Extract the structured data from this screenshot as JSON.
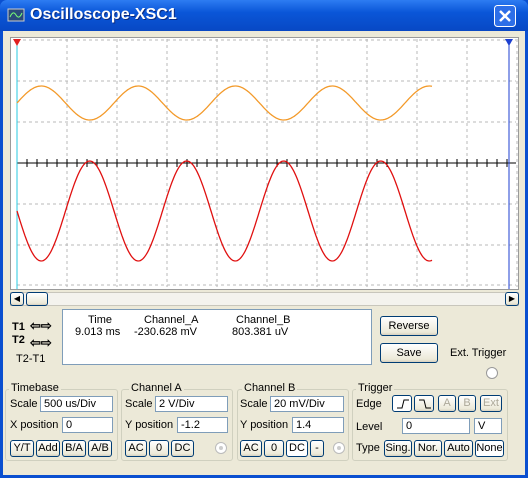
{
  "window": {
    "title": "Oscilloscope-XSC1"
  },
  "cursors": {
    "t1": "T1",
    "t2": "T2",
    "t2_t1": "T2-T1"
  },
  "readout": {
    "headers": [
      "Time",
      "Channel_A",
      "Channel_B"
    ],
    "values": [
      "9.013 ms",
      "-230.628 mV",
      "803.381 uV"
    ]
  },
  "buttons": {
    "reverse": "Reverse",
    "save": "Save"
  },
  "ext_trigger": "Ext. Trigger",
  "timebase": {
    "title": "Timebase",
    "scale_label": "Scale",
    "scale": "500 us/Div",
    "position_label": "X position",
    "position": "0",
    "modes": [
      "Y/T",
      "Add",
      "B/A",
      "A/B"
    ]
  },
  "channel_a": {
    "title": "Channel A",
    "scale_label": "Scale",
    "scale": "2  V/Div",
    "position_label": "Y position",
    "position": "-1.2",
    "coupling": [
      "AC",
      "0",
      "DC"
    ]
  },
  "channel_b": {
    "title": "Channel B",
    "scale_label": "Scale",
    "scale": "20 mV/Div",
    "position_label": "Y position",
    "position": "1.4",
    "coupling": [
      "AC",
      "0",
      "DC",
      "-"
    ]
  },
  "trigger": {
    "title": "Trigger",
    "edge_label": "Edge",
    "sources": [
      "A",
      "B",
      "Ext"
    ],
    "level_label": "Level",
    "level": "0",
    "level_unit": "V",
    "type_label": "Type",
    "types": [
      "Sing.",
      "Nor.",
      "Auto",
      "None"
    ]
  }
}
